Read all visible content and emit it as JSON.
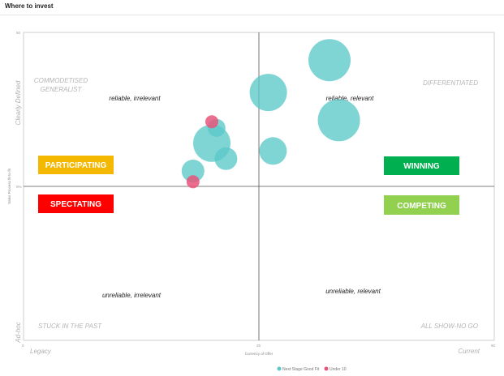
{
  "title": "Where to invest",
  "chart_data": {
    "type": "scatter",
    "subtype": "bubble",
    "xlabel": "Currency of Offer",
    "ylabel": "Sales Process fit-to-fit",
    "xlim": [
      0,
      50
    ],
    "ylim": [
      -50,
      50
    ],
    "x_ticks": [
      "0",
      "25",
      "50"
    ],
    "y_ticks": [
      "50",
      "0%",
      ""
    ],
    "grid": false,
    "legend_position": "bottom",
    "x_axis_end_labels": {
      "left": "Legacy",
      "right": "Current"
    },
    "y_axis_end_labels": {
      "top": "Clearly Defined",
      "bottom": "Ad-hoc"
    },
    "corner_labels": [
      {
        "id": "top-left",
        "lines": [
          "COMMODETISED",
          "GENERALIST"
        ]
      },
      {
        "id": "top-right",
        "lines": [
          "DIFFERENTIATED"
        ]
      },
      {
        "id": "bottom-left",
        "lines": [
          "STUCK IN THE PAST"
        ]
      },
      {
        "id": "bottom-right",
        "lines": [
          "ALL SHOW-NO GO"
        ]
      }
    ],
    "quadrant_labels": {
      "top-left": "reliable, irrelevant",
      "top-right": "reliable, relevant",
      "bottom-left": "unreliable, irrelevant",
      "bottom-right": "unreliable, relevant"
    },
    "badges": [
      {
        "id": "participating",
        "label": "PARTICIPATING",
        "color": "#F5B800"
      },
      {
        "id": "spectating",
        "label": "SPECTATING",
        "color": "#FF0000"
      },
      {
        "id": "winning",
        "label": "WINNING",
        "color": "#00B050"
      },
      {
        "id": "competing",
        "label": "COMPETING",
        "color": "#92D050"
      }
    ],
    "series": [
      {
        "name": "Next Stage Good Fit",
        "color": "#5BC8C8",
        "points": [
          {
            "x": 32.5,
            "y": 41.0,
            "size": 26
          },
          {
            "x": 26.0,
            "y": 30.5,
            "size": 23
          },
          {
            "x": 33.5,
            "y": 21.5,
            "size": 26
          },
          {
            "x": 26.5,
            "y": 11.5,
            "size": 17
          },
          {
            "x": 20.0,
            "y": 14.0,
            "size": 23
          },
          {
            "x": 21.5,
            "y": 9.0,
            "size": 14
          },
          {
            "x": 20.5,
            "y": 19.0,
            "size": 11
          },
          {
            "x": 18.0,
            "y": 5.0,
            "size": 14
          }
        ]
      },
      {
        "name": "Under 10",
        "color": "#E8557A",
        "points": [
          {
            "x": 20.0,
            "y": 21.0,
            "size": 8
          },
          {
            "x": 18.0,
            "y": 1.5,
            "size": 8
          }
        ]
      }
    ]
  }
}
